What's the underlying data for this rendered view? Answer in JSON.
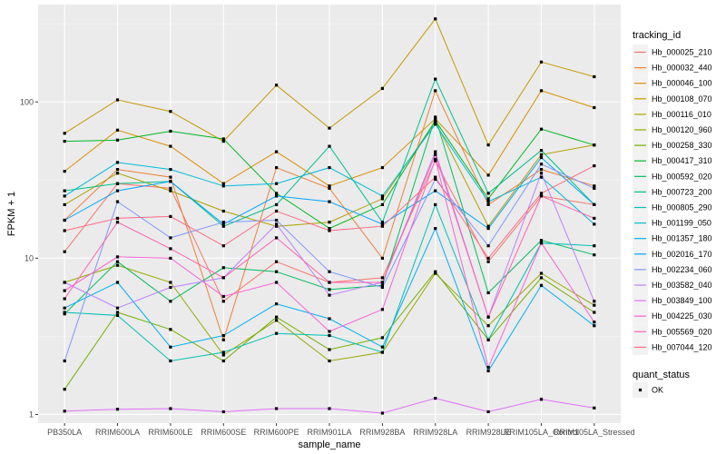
{
  "chart_data": {
    "type": "line",
    "xlabel": "sample_name",
    "ylabel": "FPKM + 1",
    "yscale": "log10",
    "ylim": [
      0.88,
      420
    ],
    "yticks": [
      1,
      10,
      100
    ],
    "grid": true,
    "legend_position": "right",
    "categories": [
      "PB350LA",
      "RRIM600LA",
      "RRIM600LE",
      "RRIM600SE",
      "RRIM600PE",
      "RRIM901LA",
      "RRIM928BA",
      "RRIM928LA",
      "RRIM928LE",
      "RRIM105LA_Control",
      "RRIM105LA_Stressed"
    ],
    "legend": {
      "title": "tracking_id"
    },
    "quant_status": {
      "title": "quant_status",
      "items": [
        "OK"
      ]
    },
    "series": [
      {
        "name": "Hb_000025_210",
        "color": "#F8766D",
        "values": [
          11,
          30,
          28,
          5.3,
          9.5,
          7.0,
          7.5,
          42,
          9.5,
          25,
          22
        ]
      },
      {
        "name": "Hb_000032_440",
        "color": "#EC8239",
        "values": [
          17.5,
          37,
          33,
          3.0,
          38,
          28,
          10,
          118,
          22,
          37,
          29
        ]
      },
      {
        "name": "Hb_000046_100",
        "color": "#DB8E00",
        "values": [
          36,
          66,
          52,
          30,
          48,
          29,
          38,
          78,
          34,
          118,
          92
        ]
      },
      {
        "name": "Hb_000108_070",
        "color": "#C79800",
        "values": [
          63,
          103,
          87,
          56,
          128,
          68,
          122,
          340,
          53,
          180,
          145
        ]
      },
      {
        "name": "Hb_000116_010",
        "color": "#AFA100",
        "values": [
          22,
          35,
          27,
          20,
          16,
          17,
          24,
          75,
          16,
          46,
          53
        ]
      },
      {
        "name": "Hb_000120_960",
        "color": "#96A900",
        "values": [
          7.0,
          9.0,
          7.0,
          2.4,
          4.0,
          2.2,
          2.5,
          8.0,
          3.7,
          8.0,
          5.0
        ]
      },
      {
        "name": "Hb_000258_330",
        "color": "#72B000",
        "values": [
          1.45,
          4.5,
          3.5,
          2.2,
          4.2,
          2.6,
          3.1,
          8.2,
          3.0,
          7.5,
          4.5
        ]
      },
      {
        "name": "Hb_000417_310",
        "color": "#00B81F",
        "values": [
          56,
          57,
          65,
          58,
          26,
          15.5,
          22,
          76,
          24,
          67,
          53
        ]
      },
      {
        "name": "Hb_000592_020",
        "color": "#00BD5C",
        "values": [
          4.4,
          9.5,
          5.3,
          8.7,
          8.2,
          6.3,
          6.7,
          80,
          6.0,
          13,
          10.5
        ]
      },
      {
        "name": "Hb_000723_200",
        "color": "#00C08D",
        "values": [
          27,
          30,
          31,
          16,
          22,
          52,
          17,
          140,
          26,
          49,
          22
        ]
      },
      {
        "name": "Hb_000805_290",
        "color": "#00C1B3",
        "values": [
          4.5,
          4.3,
          2.2,
          2.5,
          3.3,
          3.2,
          2.5,
          22,
          3.0,
          12.5,
          12
        ]
      },
      {
        "name": "Hb_001199_050",
        "color": "#00BCD8",
        "values": [
          25,
          41,
          37,
          29,
          30,
          38,
          25,
          72,
          23,
          33,
          16.5
        ]
      },
      {
        "name": "Hb_001357_180",
        "color": "#00B0F6",
        "values": [
          4.8,
          7.0,
          2.7,
          3.2,
          5.1,
          4.1,
          2.7,
          15.5,
          1.9,
          6.7,
          3.7
        ]
      },
      {
        "name": "Hb_002016_170",
        "color": "#00A5FF",
        "values": [
          17.5,
          27,
          31,
          16.5,
          25,
          23,
          16.5,
          27,
          15.5,
          44,
          22
        ]
      },
      {
        "name": "Hb_002234_060",
        "color": "#7F96FF",
        "values": [
          2.2,
          23,
          13.5,
          17,
          17.5,
          8.2,
          6.5,
          32,
          12,
          40,
          28
        ]
      },
      {
        "name": "Hb_003582_040",
        "color": "#BB81FF",
        "values": [
          7.0,
          4.8,
          6.5,
          7.5,
          16.5,
          5.8,
          7.0,
          48,
          4.2,
          35,
          5.3
        ]
      },
      {
        "name": "Hb_003849_100",
        "color": "#E16FF9",
        "values": [
          1.05,
          1.08,
          1.09,
          1.04,
          1.09,
          1.09,
          1.02,
          1.27,
          1.04,
          1.25,
          1.1
        ]
      },
      {
        "name": "Hb_004225_030",
        "color": "#F862D7",
        "values": [
          6.2,
          10.2,
          10,
          5.7,
          7.0,
          3.4,
          4.7,
          43,
          2.0,
          12.5,
          3.9
        ]
      },
      {
        "name": "Hb_005569_020",
        "color": "#FF61AF",
        "values": [
          5.5,
          17,
          11.5,
          7.5,
          13.5,
          7.0,
          7.0,
          46,
          4.2,
          25,
          18
        ]
      },
      {
        "name": "Hb_007044_120",
        "color": "#FF6C86",
        "values": [
          15,
          18,
          18.5,
          12,
          20,
          15,
          16,
          33,
          10,
          26,
          39
        ]
      }
    ]
  }
}
